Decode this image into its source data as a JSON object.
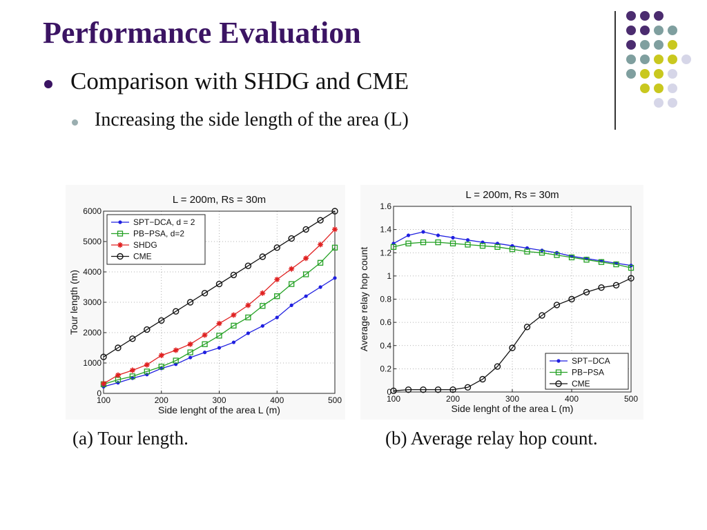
{
  "slide": {
    "title": "Performance Evaluation",
    "bullet1": "Comparison with SHDG and CME",
    "bullet2": "Increasing the side length of the area (L)",
    "caption_a": "(a) Tour length.",
    "caption_b": "(b) Average relay hop count.",
    "colors": {
      "title": "#3b1463",
      "purple": "#4b2c6f",
      "teal": "#7f9f9f",
      "yellow": "#c9c81f",
      "lavender": "#d6d6e8"
    }
  },
  "decoration": {
    "dot_rows": [
      [
        "purple",
        "purple",
        "purple"
      ],
      [
        "purple",
        "purple",
        "teal",
        "teal"
      ],
      [
        "purple",
        "teal",
        "teal",
        "yellow"
      ],
      [
        "teal",
        "teal",
        "yellow",
        "yellow",
        "lavender"
      ],
      [
        "teal",
        "yellow",
        "yellow",
        "lavender"
      ],
      [
        "yellow",
        "yellow",
        "lavender"
      ],
      [
        "lavender",
        "lavender"
      ]
    ]
  },
  "chart_data": [
    {
      "type": "line",
      "title": "L = 200m, Rs = 30m",
      "xlabel": "Side lenght of the area L (m)",
      "ylabel": "Tour length (m)",
      "xlim": [
        100,
        500
      ],
      "ylim": [
        0,
        6000
      ],
      "xticks": [
        100,
        200,
        300,
        400,
        500
      ],
      "yticks": [
        0,
        1000,
        2000,
        3000,
        4000,
        5000,
        6000
      ],
      "grid": true,
      "legend": "top-left",
      "x": [
        100,
        125,
        150,
        175,
        200,
        225,
        250,
        275,
        300,
        325,
        350,
        375,
        400,
        425,
        450,
        475,
        500
      ],
      "series": [
        {
          "name": "SPT−DCA, d = 2",
          "color": "#1f1fe0",
          "marker": "dot",
          "values": [
            220,
            350,
            500,
            620,
            820,
            960,
            1180,
            1350,
            1500,
            1680,
            1980,
            2220,
            2500,
            2900,
            3200,
            3500,
            3800
          ]
        },
        {
          "name": "PB−PSA, d=2",
          "color": "#22a022",
          "marker": "square",
          "values": [
            300,
            450,
            560,
            720,
            880,
            1080,
            1350,
            1620,
            1900,
            2230,
            2500,
            2880,
            3200,
            3600,
            3920,
            4300,
            4800
          ]
        },
        {
          "name": "SHDG",
          "color": "#e02020",
          "marker": "star",
          "values": [
            320,
            600,
            760,
            940,
            1250,
            1420,
            1620,
            1920,
            2300,
            2580,
            2900,
            3300,
            3750,
            4100,
            4450,
            4900,
            5400
          ]
        },
        {
          "name": "CME",
          "color": "#111111",
          "marker": "circle",
          "values": [
            1200,
            1500,
            1800,
            2100,
            2400,
            2700,
            3000,
            3300,
            3600,
            3900,
            4200,
            4500,
            4800,
            5100,
            5400,
            5700,
            6000
          ]
        }
      ]
    },
    {
      "type": "line",
      "title": "L = 200m, Rs = 30m",
      "xlabel": "Side lenght of the area L (m)",
      "ylabel": "Average relay hop count",
      "xlim": [
        100,
        500
      ],
      "ylim": [
        0,
        1.6
      ],
      "xticks": [
        100,
        200,
        300,
        400,
        500
      ],
      "yticks": [
        0,
        0.2,
        0.4,
        0.6,
        0.8,
        1,
        1.2,
        1.4,
        1.6
      ],
      "grid": true,
      "legend": "bottom-right",
      "x": [
        100,
        125,
        150,
        175,
        200,
        225,
        250,
        275,
        300,
        325,
        350,
        375,
        400,
        425,
        450,
        475,
        500
      ],
      "series": [
        {
          "name": "SPT−DCA",
          "color": "#1f1fe0",
          "marker": "dot",
          "values": [
            1.28,
            1.35,
            1.38,
            1.35,
            1.33,
            1.31,
            1.29,
            1.28,
            1.26,
            1.24,
            1.22,
            1.2,
            1.17,
            1.15,
            1.13,
            1.11,
            1.09
          ]
        },
        {
          "name": "PB−PSA",
          "color": "#22a022",
          "marker": "square",
          "values": [
            1.25,
            1.28,
            1.29,
            1.29,
            1.28,
            1.27,
            1.26,
            1.25,
            1.23,
            1.21,
            1.2,
            1.18,
            1.16,
            1.14,
            1.12,
            1.1,
            1.07
          ]
        },
        {
          "name": "CME",
          "color": "#111111",
          "marker": "circle",
          "values": [
            0.01,
            0.02,
            0.02,
            0.02,
            0.02,
            0.04,
            0.11,
            0.22,
            0.38,
            0.56,
            0.66,
            0.75,
            0.8,
            0.86,
            0.9,
            0.92,
            0.98
          ]
        }
      ]
    }
  ]
}
